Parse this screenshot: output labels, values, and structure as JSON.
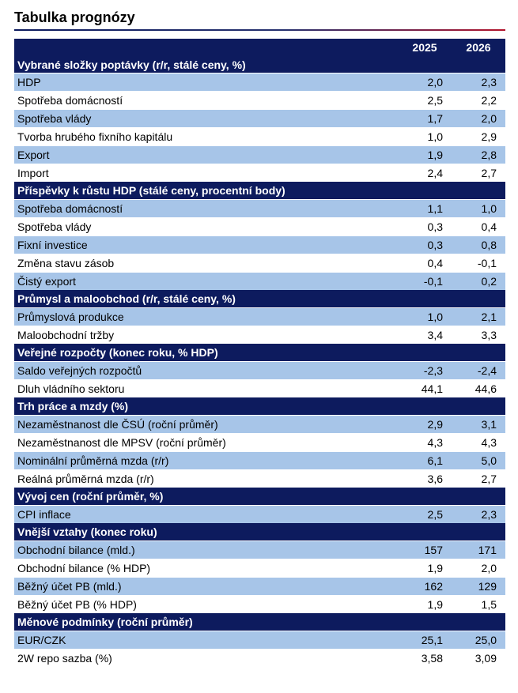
{
  "page": {
    "title": "Tabulka prognózy"
  },
  "table": {
    "years": [
      "2025",
      "2026"
    ],
    "sections": [
      {
        "title": "Vybrané složky poptávky (r/r, stálé ceny, %)",
        "rows": [
          {
            "label": "HDP",
            "v2025": "2,0",
            "v2026": "2,3"
          },
          {
            "label": "Spotřeba domácností",
            "v2025": "2,5",
            "v2026": "2,2"
          },
          {
            "label": "Spotřeba vlády",
            "v2025": "1,7",
            "v2026": "2,0"
          },
          {
            "label": "Tvorba hrubého fixního kapitálu",
            "v2025": "1,0",
            "v2026": "2,9"
          },
          {
            "label": "Export",
            "v2025": "1,9",
            "v2026": "2,8"
          },
          {
            "label": "Import",
            "v2025": "2,4",
            "v2026": "2,7"
          }
        ]
      },
      {
        "title": "Příspěvky k růstu HDP (stálé ceny, procentní body)",
        "rows": [
          {
            "label": "Spotřeba domácností",
            "v2025": "1,1",
            "v2026": "1,0"
          },
          {
            "label": "Spotřeba vlády",
            "v2025": "0,3",
            "v2026": "0,4"
          },
          {
            "label": "Fixní investice",
            "v2025": "0,3",
            "v2026": "0,8"
          },
          {
            "label": "Změna stavu zásob",
            "v2025": "0,4",
            "v2026": "-0,1"
          },
          {
            "label": "Čistý export",
            "v2025": "-0,1",
            "v2026": "0,2"
          }
        ]
      },
      {
        "title": "Průmysl a maloobchod (r/r, stálé ceny, %)",
        "rows": [
          {
            "label": "Průmyslová produkce",
            "v2025": "1,0",
            "v2026": "2,1"
          },
          {
            "label": "Maloobchodní tržby",
            "v2025": "3,4",
            "v2026": "3,3"
          }
        ]
      },
      {
        "title": "Veřejné rozpočty (konec roku, % HDP)",
        "rows": [
          {
            "label": "Saldo veřejných rozpočtů",
            "v2025": "-2,3",
            "v2026": "-2,4"
          },
          {
            "label": "Dluh vládního sektoru",
            "v2025": "44,1",
            "v2026": "44,6"
          }
        ]
      },
      {
        "title": "Trh práce a mzdy (%)",
        "rows": [
          {
            "label": "Nezaměstnanost dle ČSÚ (roční průměr)",
            "v2025": "2,9",
            "v2026": "3,1"
          },
          {
            "label": "Nezaměstnanost dle MPSV (roční průměr)",
            "v2025": "4,3",
            "v2026": "4,3"
          },
          {
            "label": "Nominální průměrná mzda (r/r)",
            "v2025": "6,1",
            "v2026": "5,0"
          },
          {
            "label": "Reálná průměrná mzda (r/r)",
            "v2025": "3,6",
            "v2026": "2,7"
          }
        ]
      },
      {
        "title": "Vývoj cen (roční průměr, %)",
        "rows": [
          {
            "label": "CPI inflace",
            "v2025": "2,5",
            "v2026": "2,3"
          }
        ]
      },
      {
        "title": "Vnější vztahy (konec roku)",
        "rows": [
          {
            "label": "Obchodní bilance (mld.)",
            "v2025": "157",
            "v2026": "171"
          },
          {
            "label": "Obchodní bilance (% HDP)",
            "v2025": "1,9",
            "v2026": "2,0"
          },
          {
            "label": "Běžný účet PB (mld.)",
            "v2025": "162",
            "v2026": "129"
          },
          {
            "label": "Běžný účet PB (% HDP)",
            "v2025": "1,9",
            "v2026": "1,5"
          }
        ]
      },
      {
        "title": "Měnové podmínky (roční průměr)",
        "rows": [
          {
            "label": "EUR/CZK",
            "v2025": "25,1",
            "v2026": "25,0"
          },
          {
            "label": "2W repo sazba (%)",
            "v2025": "3,58",
            "v2026": "3,09"
          }
        ]
      }
    ]
  }
}
